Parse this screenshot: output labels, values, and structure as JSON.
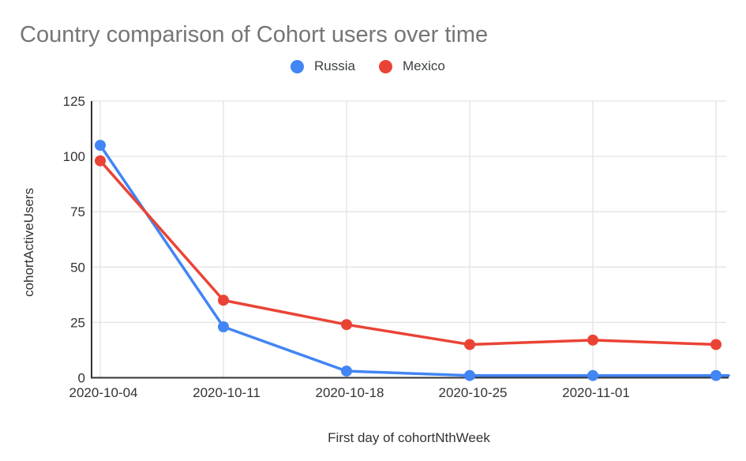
{
  "page": {
    "background_color": "#ffffff"
  },
  "chart_data": {
    "type": "line",
    "title": "Country comparison of Cohort users over time",
    "xlabel": "First day of cohortNthWeek",
    "ylabel": "cohortActiveUsers",
    "x_tick_labels": [
      "2020-10-04",
      "2020-10-11",
      "2020-10-18",
      "2020-10-25",
      "2020-11-01",
      ""
    ],
    "y_ticks": [
      0,
      25,
      50,
      75,
      100,
      125
    ],
    "y_tick_labels": [
      "0",
      "25",
      "50",
      "75",
      "100",
      "125"
    ],
    "ylim": [
      0,
      125
    ],
    "grid": true,
    "legend_position": "top",
    "series": [
      {
        "name": "Russia",
        "color": "#4285F4",
        "values": [
          105,
          23,
          3,
          1,
          1,
          1
        ],
        "extends_to_plot_edge": true
      },
      {
        "name": "Mexico",
        "color": "#EA4335",
        "values": [
          98,
          35,
          24,
          15,
          17,
          15
        ],
        "extends_to_plot_edge": false
      }
    ],
    "colors": {
      "title_text": "#757575",
      "axis_line": "#333333",
      "gridline": "#e3e3e3",
      "tick_label": "#333333",
      "legend_label": "#3c4043"
    }
  }
}
